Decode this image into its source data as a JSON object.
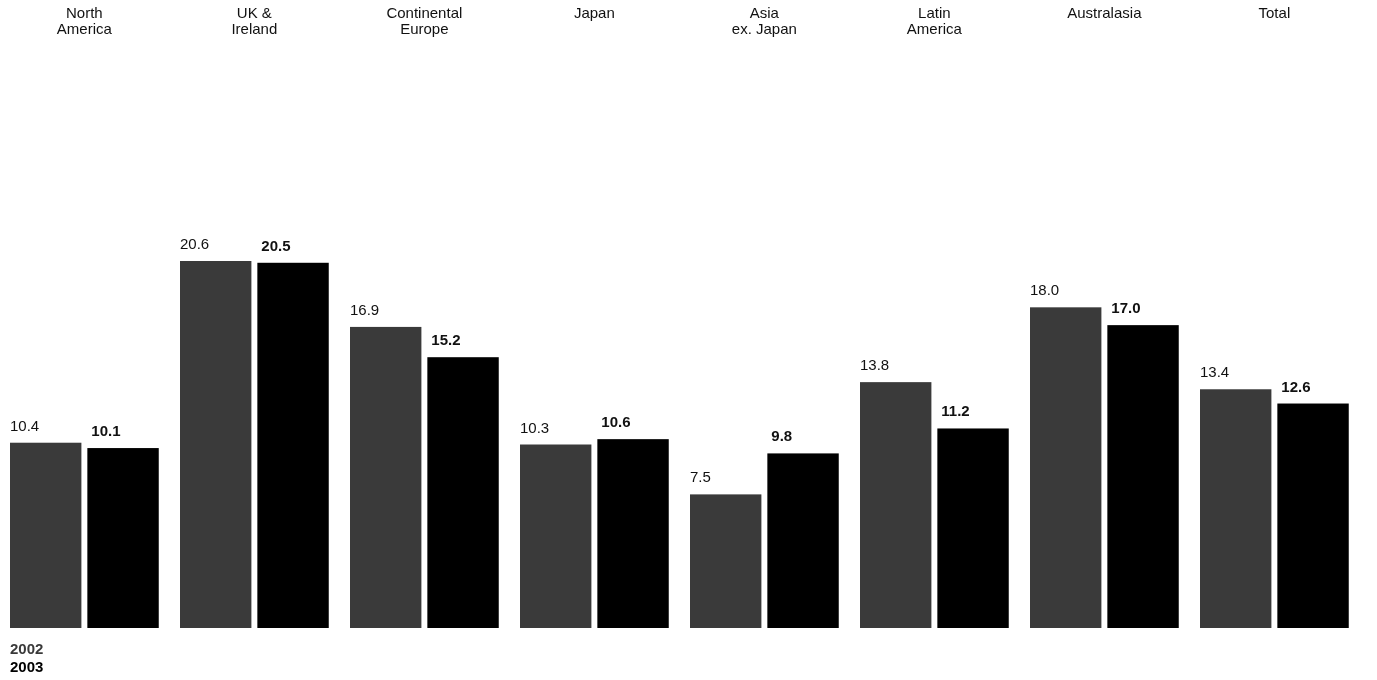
{
  "chart_data": {
    "type": "bar",
    "categories": [
      "North\nAmerica",
      "UK &\nIreland",
      "Continental\nEurope",
      "Japan",
      "Asia\nex. Japan",
      "Latin\nAmerica",
      "Australasia",
      "Total"
    ],
    "series": [
      {
        "name": "2002",
        "color": "#3a3a3a",
        "values": [
          10.4,
          20.6,
          16.9,
          10.3,
          7.5,
          13.8,
          18.0,
          13.4
        ],
        "value_labels": [
          "10.4",
          "20.6",
          "16.9",
          "10.3",
          "7.5",
          "13.8",
          "18.0",
          "13.4"
        ]
      },
      {
        "name": "2003",
        "color": "#000000",
        "values": [
          10.1,
          20.5,
          15.2,
          10.6,
          9.8,
          11.2,
          17.0,
          12.6
        ],
        "value_labels": [
          "10.1",
          "20.5",
          "15.2",
          "10.6",
          "9.8",
          "11.2",
          "17.0",
          "12.6"
        ]
      }
    ],
    "legend": "bottom left",
    "grid": false
  }
}
